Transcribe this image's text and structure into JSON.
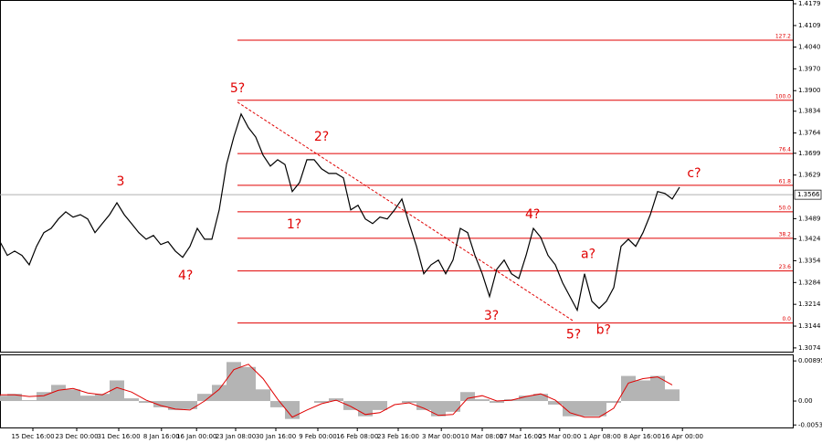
{
  "chart_data": [
    {
      "type": "line",
      "color": "#000000",
      "x": [
        0,
        1,
        2,
        3,
        4,
        5,
        6,
        7,
        8,
        9,
        10,
        11,
        12,
        13,
        14,
        15,
        16,
        17,
        18,
        19,
        20,
        21,
        22,
        23,
        24,
        25,
        26,
        27,
        28,
        29,
        30,
        31,
        32,
        33,
        34,
        35,
        36,
        37,
        38,
        39,
        40,
        41,
        42,
        43,
        44,
        45,
        46,
        47,
        48,
        49,
        50,
        51,
        52,
        53,
        54,
        55,
        56,
        57,
        58,
        59,
        60,
        61,
        62,
        63,
        64,
        65,
        66,
        67,
        68,
        69,
        70,
        71,
        72,
        73,
        74,
        75,
        76,
        77,
        78,
        79,
        80,
        81,
        82,
        83,
        84,
        85,
        86,
        87,
        88,
        89,
        90,
        91,
        92,
        93
      ],
      "values": [
        1.3415,
        1.3371,
        1.3385,
        1.3371,
        1.3341,
        1.34,
        1.3444,
        1.3458,
        1.3488,
        1.3511,
        1.3494,
        1.3502,
        1.3488,
        1.3444,
        1.3473,
        1.3502,
        1.354,
        1.3502,
        1.3473,
        1.3444,
        1.3423,
        1.3435,
        1.3406,
        1.3415,
        1.3385,
        1.3365,
        1.34,
        1.3458,
        1.3423,
        1.3423,
        1.3517,
        1.3663,
        1.3751,
        1.3825,
        1.3781,
        1.3751,
        1.3693,
        1.3658,
        1.3678,
        1.3663,
        1.3576,
        1.3605,
        1.3678,
        1.3678,
        1.3649,
        1.3634,
        1.3634,
        1.362,
        1.3517,
        1.3532,
        1.3488,
        1.3473,
        1.3494,
        1.3488,
        1.3517,
        1.3552,
        1.3473,
        1.34,
        1.3312,
        1.3341,
        1.3356,
        1.3312,
        1.3356,
        1.3458,
        1.3444,
        1.3371,
        1.3312,
        1.3239,
        1.3327,
        1.3356,
        1.3312,
        1.3297,
        1.3371,
        1.3458,
        1.3429,
        1.3371,
        1.3341,
        1.3283,
        1.3239,
        1.3195,
        1.3312,
        1.3224,
        1.3201,
        1.3224,
        1.3268,
        1.34,
        1.3423,
        1.34,
        1.3444,
        1.3502,
        1.3576,
        1.357,
        1.3552,
        1.359
      ],
      "xlim": [
        0,
        108.5
      ],
      "ylim": [
        1.3062,
        1.4191
      ],
      "xticks": [
        {
          "value": 4.5,
          "label": "15 Dec 16:00"
        },
        {
          "value": 10.5,
          "label": "23 Dec 00:00"
        },
        {
          "value": 16.25,
          "label": "31 Dec 16:00"
        },
        {
          "value": 22.1,
          "label": "8 Jan 16:00"
        },
        {
          "value": 26.9,
          "label": "16 Jan 00:00"
        },
        {
          "value": 32.25,
          "label": "23 Jan 08:00"
        },
        {
          "value": 37.75,
          "label": "30 Jan 16:00"
        },
        {
          "value": 43.5,
          "label": "9 Feb 00:00"
        },
        {
          "value": 48.9,
          "label": "16 Feb 08:00"
        },
        {
          "value": 54.5,
          "label": "23 Feb 16:00"
        },
        {
          "value": 60.4,
          "label": "3 Mar 00:00"
        },
        {
          "value": 66,
          "label": "10 Mar 08:00"
        },
        {
          "value": 71.25,
          "label": "17 Mar 16:00"
        },
        {
          "value": 76.6,
          "label": "25 Mar 00:00"
        },
        {
          "value": 82.4,
          "label": "1 Apr 08:00"
        },
        {
          "value": 87.9,
          "label": "8 Apr 16:00"
        },
        {
          "value": 93.4,
          "label": "16 Apr 00:00"
        }
      ],
      "yticks": [
        1.4179,
        1.4109,
        {
          "value": 1.404,
          "label": "1.4040"
        },
        {
          "value": 1.397,
          "label": "1.3970"
        },
        {
          "value": 1.39,
          "label": "1.3900"
        },
        1.3834,
        1.3764,
        1.3699,
        1.3629,
        1.3489,
        1.3424,
        1.3354,
        1.3284,
        1.3214,
        1.3144,
        1.3074
      ],
      "current_price": 1.3566,
      "levels": [
        {
          "label": "127.2",
          "value": 1.4062
        },
        {
          "label": "100.0",
          "value": 1.3869
        },
        {
          "label": "76.4",
          "value": 1.3698
        },
        {
          "label": "61.8",
          "value": 1.3596
        },
        {
          "label": "50.0",
          "value": 1.3511
        },
        {
          "label": "38.2",
          "value": 1.3426
        },
        {
          "label": "23.6",
          "value": 1.3321
        },
        {
          "label": "0.0",
          "value": 1.3154
        }
      ],
      "levels_start": 32.5,
      "trendline": {
        "x": [
          32.5,
          78.5
        ],
        "y": [
          1.3863,
          1.316
        ]
      },
      "annotations": [
        {
          "text": "3",
          "x": 16.5,
          "y": 1.3608
        },
        {
          "text": "4?",
          "x": 25.4,
          "y": 1.3306
        },
        {
          "text": "5?",
          "x": 32.5,
          "y": 1.3907
        },
        {
          "text": "1?",
          "x": 40.25,
          "y": 1.347
        },
        {
          "text": "2?",
          "x": 44,
          "y": 1.3751
        },
        {
          "text": "3?",
          "x": 67.25,
          "y": 1.3177
        },
        {
          "text": "4?",
          "x": 72.9,
          "y": 1.3502
        },
        {
          "text": "5?",
          "x": 78.5,
          "y": 1.3116
        },
        {
          "text": "a?",
          "x": 80.5,
          "y": 1.3374
        },
        {
          "text": "b?",
          "x": 82.6,
          "y": 1.3131
        },
        {
          "text": "c?",
          "x": 95,
          "y": 1.3634
        }
      ],
      "annotation_color": "#e00000",
      "level_color": "#e00000"
    },
    {
      "type": "histogram-signal",
      "x": [
        0,
        2,
        4,
        6,
        8,
        10,
        12,
        14,
        16,
        18,
        20,
        22,
        24,
        26,
        28,
        30,
        32,
        34,
        36,
        38,
        40,
        42,
        44,
        46,
        48,
        50,
        52,
        54,
        56,
        58,
        60,
        62,
        64,
        66,
        68,
        70,
        72,
        74,
        76,
        78,
        80,
        82,
        84,
        86,
        88,
        90,
        92
      ],
      "values": [
        0.0012,
        0.0016,
        0.0002,
        0.002,
        0.0036,
        0.0026,
        0.0012,
        0.0016,
        0.0046,
        0.0006,
        -0.0004,
        -0.0014,
        -0.002,
        -0.0018,
        0.0016,
        0.0036,
        0.0087,
        0.0076,
        0.0026,
        -0.0014,
        -0.004,
        0,
        -0.0004,
        0.0006,
        -0.002,
        -0.0034,
        -0.002,
        0,
        -0.0004,
        -0.002,
        -0.0034,
        -0.0024,
        0.002,
        0.0004,
        -0.0004,
        0.0004,
        0.0012,
        0.0016,
        -0.0008,
        -0.0034,
        -0.0034,
        -0.0034,
        -0.0004,
        0.0056,
        0.0046,
        0.0056,
        0.0026
      ],
      "signal": [
        0.0014,
        0.0014,
        0.001,
        0.0012,
        0.0024,
        0.0028,
        0.0018,
        0.0014,
        0.003,
        0.002,
        0.0002,
        -0.001,
        -0.0018,
        -0.002,
        0,
        0.0026,
        0.007,
        0.0082,
        0.005,
        0.0004,
        -0.0036,
        -0.002,
        -0.0006,
        0.0002,
        -0.0012,
        -0.003,
        -0.0026,
        -0.0008,
        -0.0004,
        -0.0016,
        -0.0032,
        -0.003,
        0.0006,
        0.0012,
        0,
        0.0002,
        0.001,
        0.0016,
        0.0002,
        -0.0026,
        -0.0036,
        -0.0036,
        -0.0016,
        0.004,
        0.005,
        0.0054,
        0.0036
      ],
      "color": "#b4b4b4",
      "signal_color": "#e00000",
      "xlim": [
        0,
        108.5
      ],
      "ylim": [
        -0.0059,
        0.0102
      ],
      "yticks": [
        0.00895,
        {
          "value": 0,
          "label": "0.00"
        },
        -0.00534
      ]
    }
  ]
}
